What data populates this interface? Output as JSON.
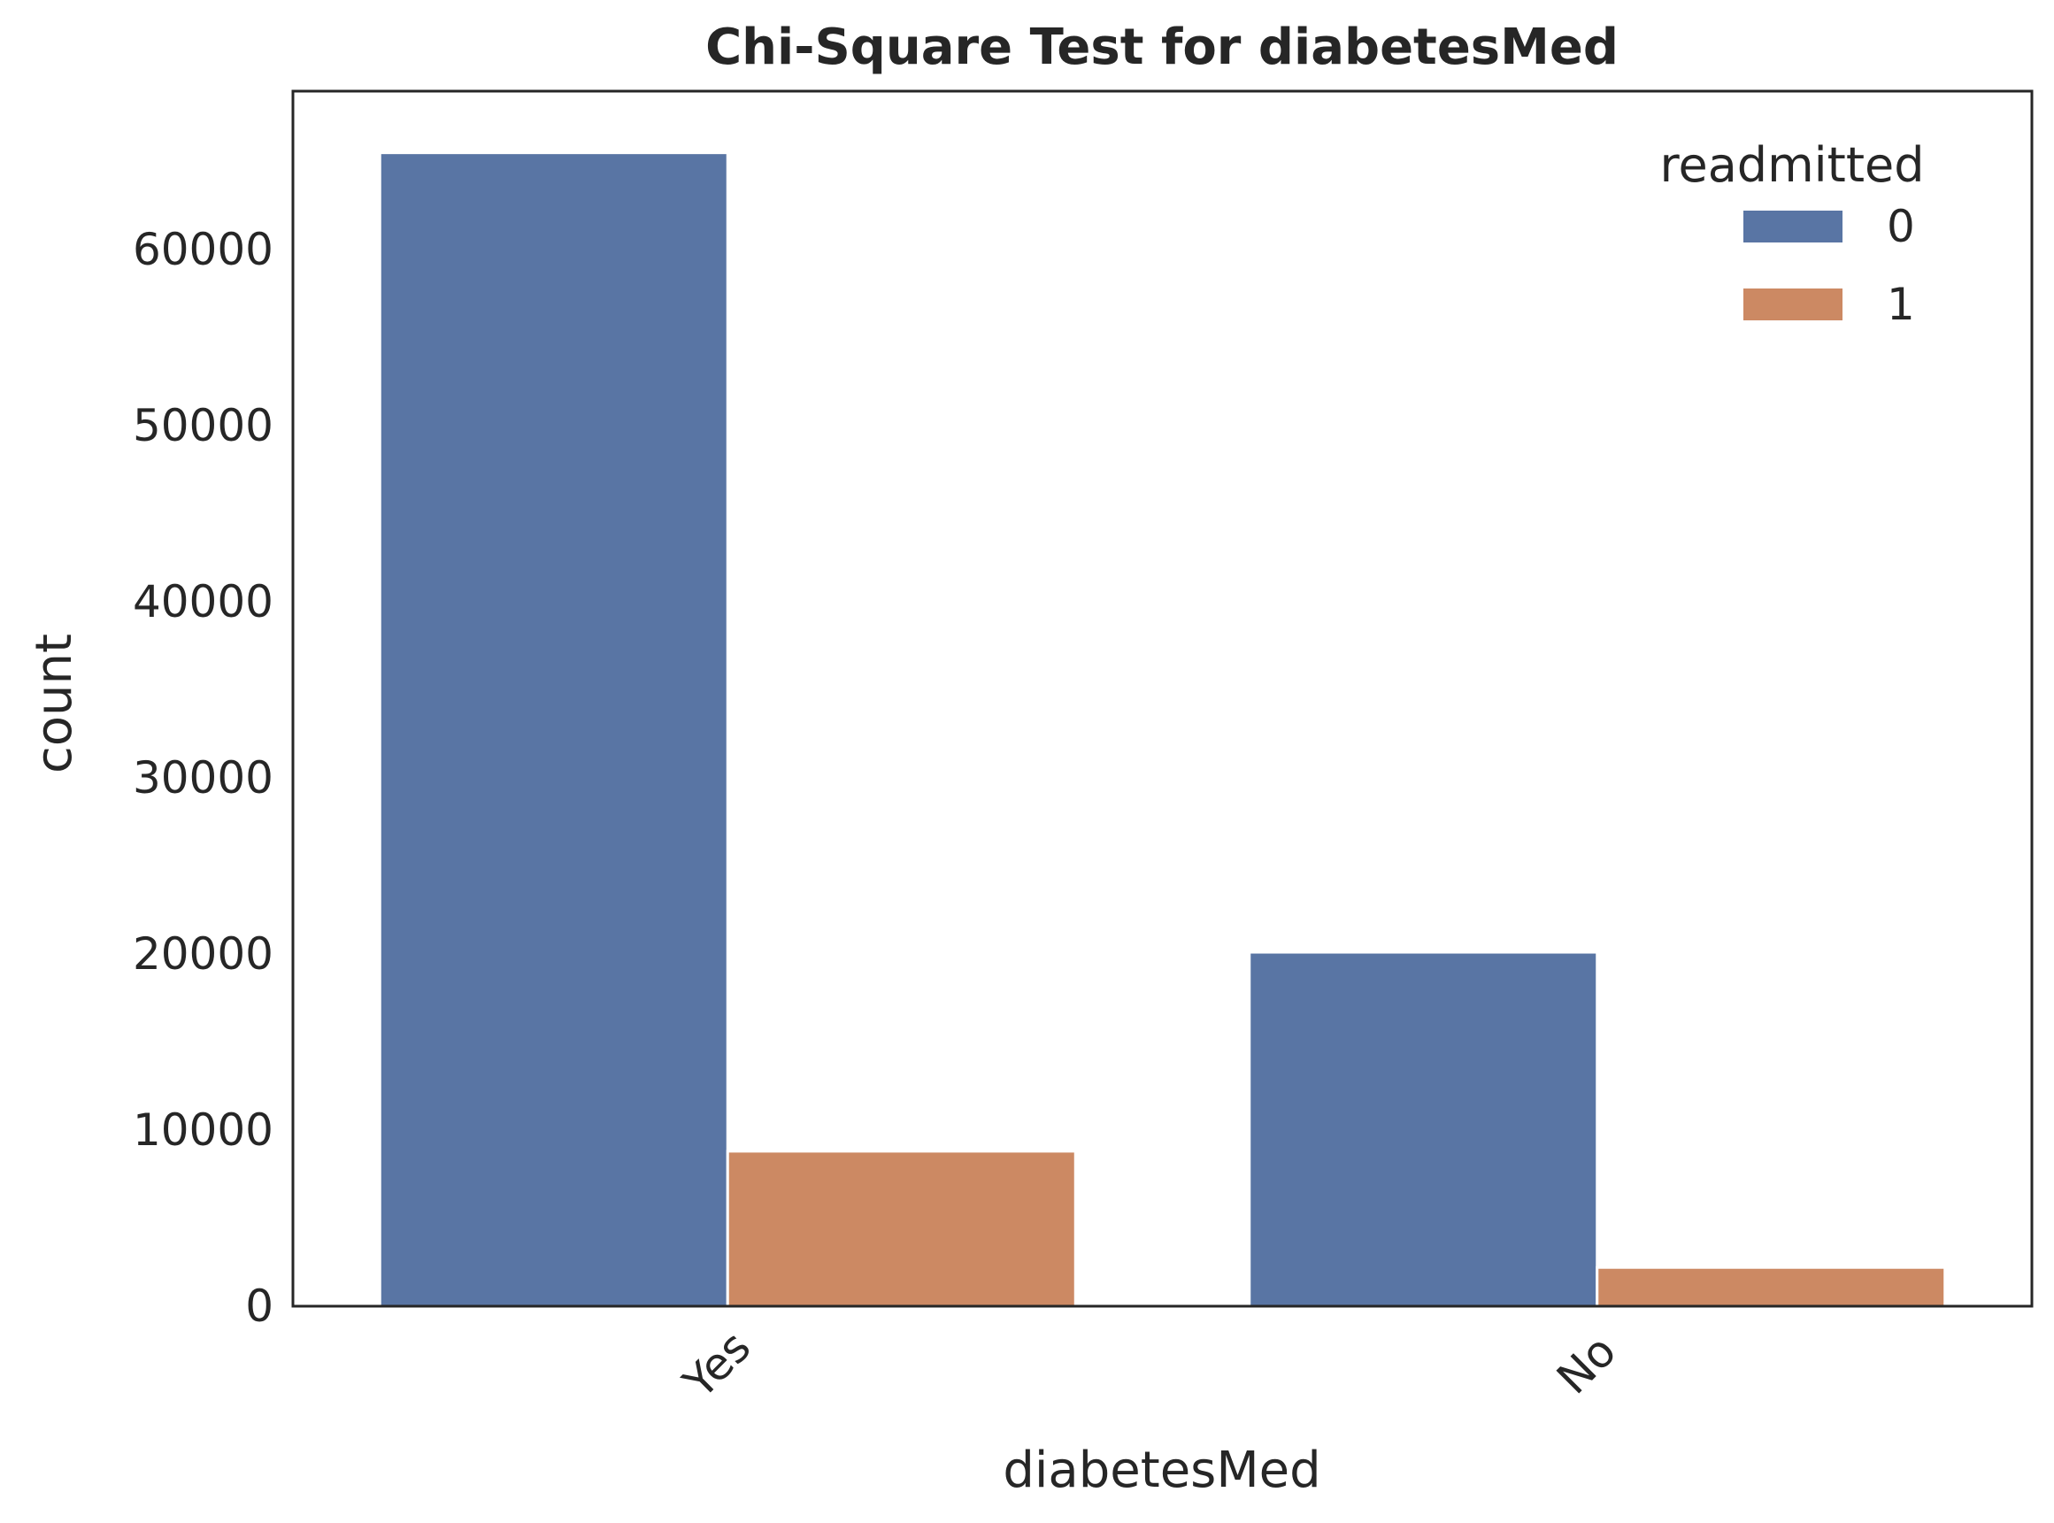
{
  "chart_data": {
    "type": "bar",
    "title": "Chi-Square Test for diabetesMed",
    "xlabel": "diabetesMed",
    "ylabel": "count",
    "categories": [
      "Yes",
      "No"
    ],
    "series": [
      {
        "name": "0",
        "values": [
          65500,
          20100
        ],
        "color": "#5975a4"
      },
      {
        "name": "1",
        "values": [
          8800,
          2200
        ],
        "color": "#cc8963"
      }
    ],
    "ylim": [
      0,
      69000
    ],
    "yticks": [
      0,
      10000,
      20000,
      30000,
      40000,
      50000,
      60000
    ],
    "legend": {
      "title": "readmitted",
      "placement": "top-right"
    },
    "grid": false
  }
}
